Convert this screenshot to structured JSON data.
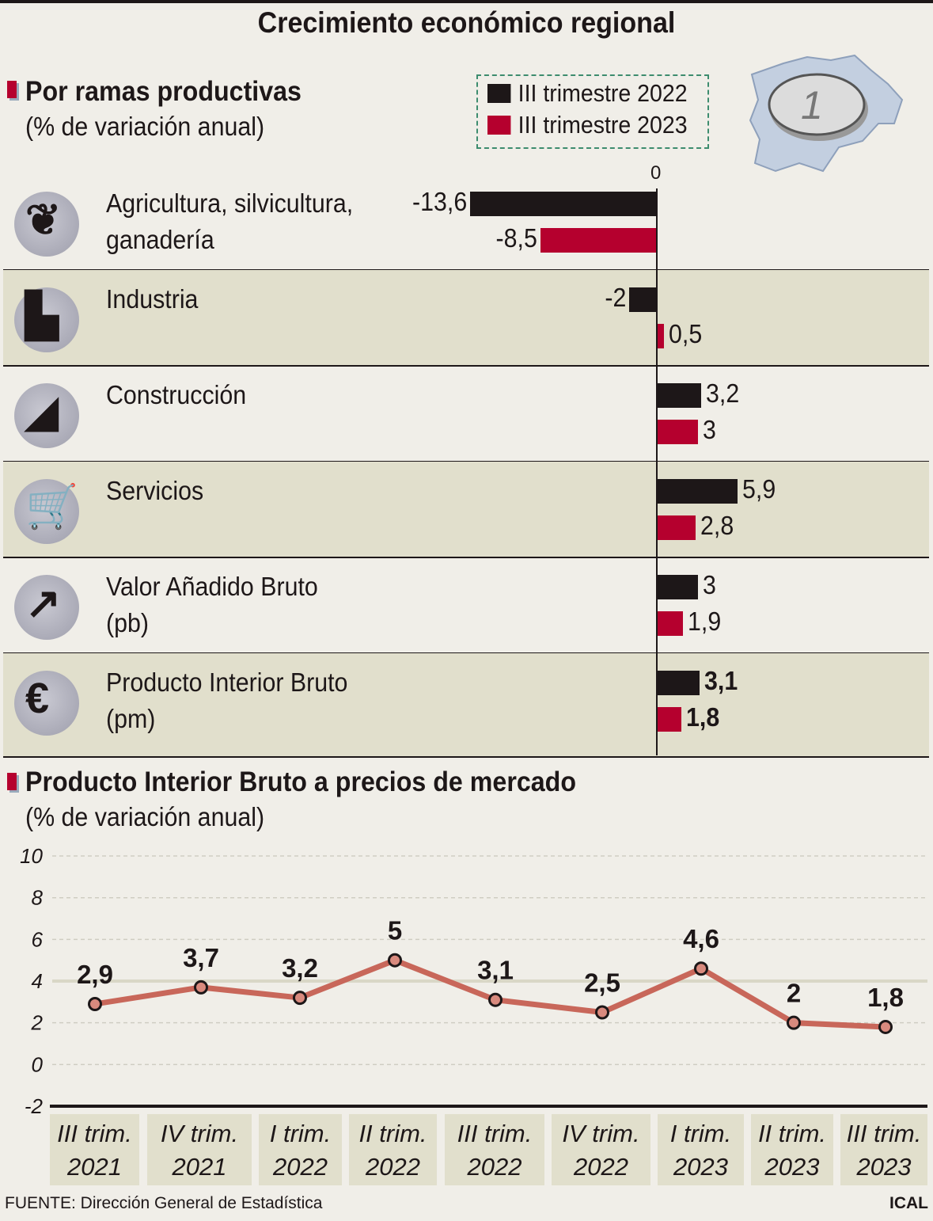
{
  "title": "Crecimiento económico regional",
  "section1": {
    "title": "Por ramas productivas",
    "subtitle": "(% de variación anual)",
    "zero_label": "0",
    "legend": [
      {
        "label": "III trimestre 2022",
        "color": "#1d1718"
      },
      {
        "label": "III trimestre 2023",
        "color": "#b5002e"
      }
    ]
  },
  "section2": {
    "title": "Producto Interior Bruto a precios de mercado",
    "subtitle": "(% de variación anual)"
  },
  "map_icon": "castilla-y-leon-map-with-euro-coin-icon",
  "chart_data": [
    {
      "type": "bar",
      "orientation": "horizontal",
      "categories": [
        "Agricultura, silvicultura,\nganadería",
        "Industria",
        "Construcción",
        "Servicios",
        "Valor Añadido Bruto\n(pb)",
        "Producto Interior Bruto\n(pm)"
      ],
      "category_icons": [
        "wheat-icon",
        "factory-icon",
        "trowel-icon",
        "shopping-cart-icon",
        "trend-up-arrow-icon",
        "euro-icon"
      ],
      "series": [
        {
          "name": "III trimestre 2022",
          "color": "#1d1718",
          "values": [
            -13.6,
            -2,
            3.2,
            5.9,
            3,
            3.1
          ],
          "labels": [
            "-13,6",
            "-2",
            "3,2",
            "5,9",
            "3",
            "3,1"
          ]
        },
        {
          "name": "III trimestre 2023",
          "color": "#b5002e",
          "values": [
            -8.5,
            0.5,
            3,
            2.8,
            1.9,
            1.8
          ],
          "labels": [
            "-8,5",
            "0,5",
            "3",
            "2,8",
            "1,9",
            "1,8"
          ]
        }
      ],
      "legend": "top-right"
    },
    {
      "type": "line",
      "categories": [
        "III trim.\n2021",
        "IV trim.\n2021",
        "I trim.\n2022",
        "II trim.\n2022",
        "III trim.\n2022",
        "IV trim.\n2022",
        "I trim.\n2023",
        "II trim.\n2023",
        "III trim.\n2023"
      ],
      "values": [
        2.9,
        3.7,
        3.2,
        5,
        3.1,
        2.5,
        4.6,
        2,
        1.8
      ],
      "labels": [
        "2,9",
        "3,7",
        "3,2",
        "5",
        "3,1",
        "2,5",
        "4,6",
        "2",
        "1,8"
      ],
      "yticks": [
        "10",
        "8",
        "6",
        "4",
        "2",
        "0",
        "-2"
      ],
      "ylim": [
        -2,
        10
      ],
      "grid": true,
      "line_color": "#c8675a"
    }
  ],
  "footer": {
    "source": "FUENTE: Dirección General de Estadística",
    "brand": "ICAL"
  }
}
